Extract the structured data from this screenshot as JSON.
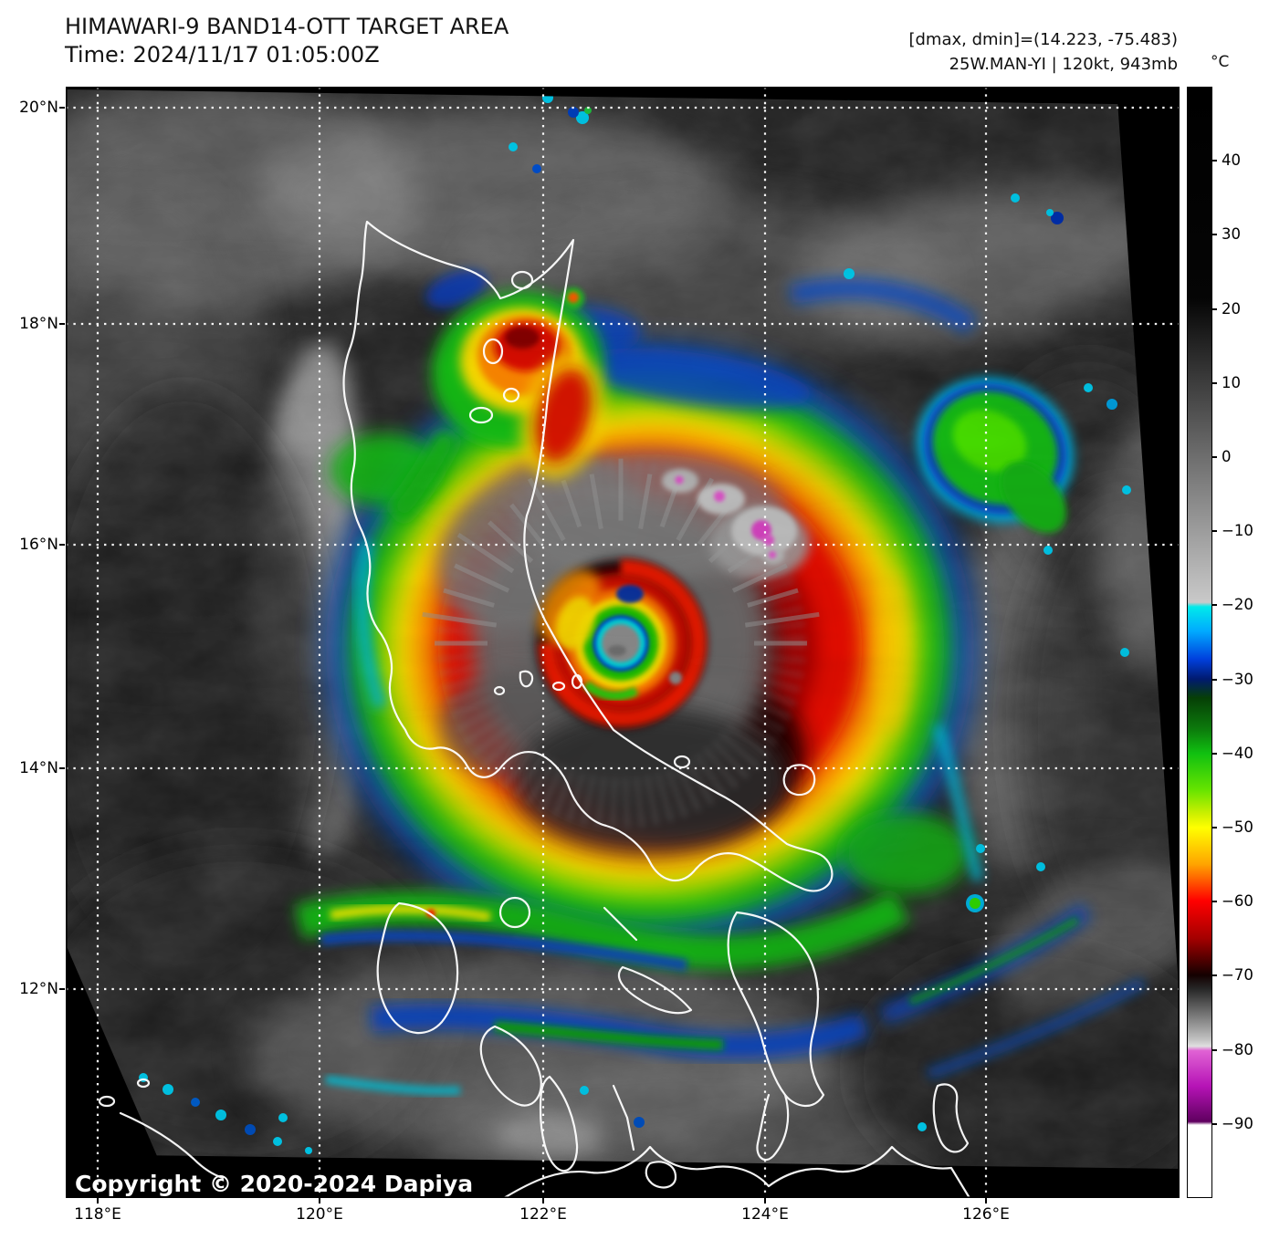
{
  "header": {
    "title": "HIMAWARI-9 BAND14-OTT TARGET AREA",
    "time_line": "Time: 2024/11/17 01:05:00Z",
    "dmax_dmin": "[dmax, dmin]=(14.223, -75.483)",
    "storm_info": "25W.MAN-YI | 120kt, 943mb"
  },
  "colorbar": {
    "unit": "°C",
    "tick_labels": [
      "40",
      "30",
      "20",
      "10",
      "0",
      "−10",
      "−20",
      "−30",
      "−40",
      "−50",
      "−60",
      "−70",
      "−80",
      "−90"
    ],
    "tick_values": [
      40,
      30,
      20,
      10,
      0,
      -10,
      -20,
      -30,
      -40,
      -50,
      -60,
      -70,
      -80,
      -90
    ],
    "value_range": [
      50,
      -100
    ],
    "gradient_stops": [
      [
        0.0,
        "#000000"
      ],
      [
        0.19,
        "#050505"
      ],
      [
        0.333,
        "#6e6e6e"
      ],
      [
        0.464,
        "#c9c9c9"
      ],
      [
        0.468,
        "#00eaea"
      ],
      [
        0.49,
        "#00aaff"
      ],
      [
        0.515,
        "#0040dd"
      ],
      [
        0.533,
        "#001a70"
      ],
      [
        0.55,
        "#063f06"
      ],
      [
        0.578,
        "#0c7a0c"
      ],
      [
        0.6,
        "#10c010"
      ],
      [
        0.633,
        "#66e400"
      ],
      [
        0.655,
        "#cff000"
      ],
      [
        0.667,
        "#ffff00"
      ],
      [
        0.7,
        "#ffa400"
      ],
      [
        0.733,
        "#ff0000"
      ],
      [
        0.767,
        "#a30000"
      ],
      [
        0.8,
        "#140101"
      ],
      [
        0.812,
        "#262626"
      ],
      [
        0.858,
        "#c2c2c2"
      ],
      [
        0.864,
        "#e0e0e0"
      ],
      [
        0.868,
        "#e062d4"
      ],
      [
        0.9,
        "#b613b6"
      ],
      [
        0.932,
        "#5f005f"
      ],
      [
        0.935,
        "#ffffff"
      ],
      [
        1.0,
        "#ffffff"
      ]
    ]
  },
  "axes": {
    "lat_labels": [
      "20°N",
      "18°N",
      "16°N",
      "14°N",
      "12°N"
    ],
    "lon_labels": [
      "118°E",
      "120°E",
      "122°E",
      "124°E",
      "126°E"
    ]
  },
  "map": {
    "copyright": "Copyright © 2020-2024 Dapiya",
    "grid_color": "#ffffff",
    "coastline_color": "#ffffff"
  }
}
